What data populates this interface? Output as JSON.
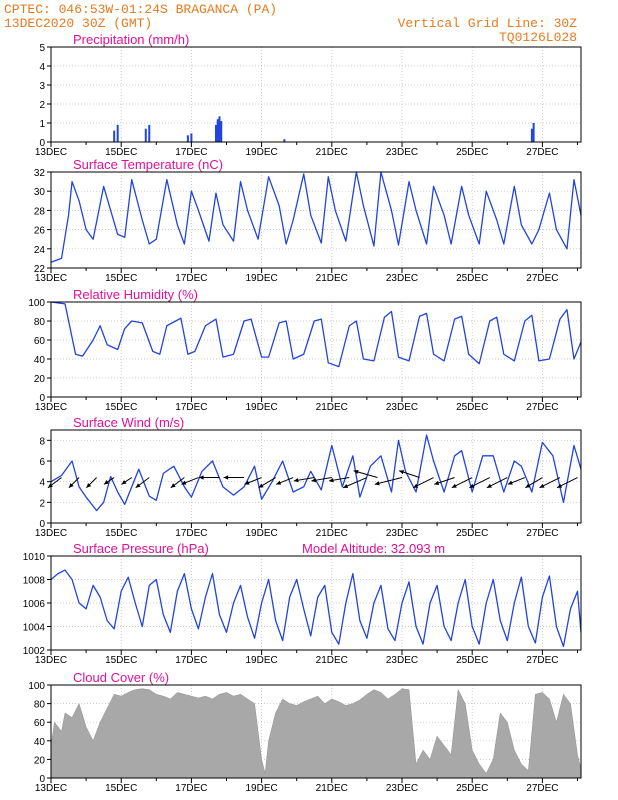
{
  "header": {
    "line1": "CPTEC:   046:53W-01:24S   BRAGANCA (PA)",
    "line2": "13DEC2020 30Z (GMT)",
    "right1": "Vertical Grid Line: 30Z",
    "right2": "TQ0126L028"
  },
  "colors": {
    "header": "#e87a1e",
    "title": "#e0109a",
    "line": "#2244dd",
    "cloud": "#a8a8a8",
    "grid": "#bbbbbb"
  },
  "x_axis": {
    "labels": [
      "13DEC",
      "15DEC",
      "17DEC",
      "19DEC",
      "21DEC",
      "23DEC",
      "25DEC",
      "27DEC"
    ],
    "range_days": [
      0,
      15.1
    ],
    "label_days": [
      0,
      2,
      4,
      6,
      8,
      10,
      12,
      14
    ]
  },
  "chart_data": [
    {
      "id": "precip",
      "type": "bar",
      "title": "Precipitation (mm/h)",
      "ylim": [
        0,
        5
      ],
      "yticks": [
        0,
        1,
        2,
        3,
        4,
        5
      ],
      "x_days": [
        1.8,
        1.9,
        2.7,
        2.8,
        3.9,
        4.0,
        4.7,
        4.75,
        4.8,
        4.85,
        6.65,
        13.7,
        13.75
      ],
      "values": [
        0.6,
        0.9,
        0.7,
        0.9,
        0.35,
        0.45,
        0.9,
        1.2,
        1.35,
        1.1,
        0.15,
        0.7,
        1.0
      ]
    },
    {
      "id": "temp",
      "type": "line",
      "title": "Surface Temperature (nC)",
      "ylim": [
        22,
        32
      ],
      "yticks": [
        22,
        24,
        26,
        28,
        30,
        32
      ],
      "x_days": [
        0,
        0.3,
        0.5,
        0.6,
        0.8,
        1.0,
        1.2,
        1.5,
        1.7,
        1.9,
        2.1,
        2.3,
        2.6,
        2.8,
        3.0,
        3.3,
        3.6,
        3.8,
        4.0,
        4.2,
        4.5,
        4.7,
        4.9,
        5.2,
        5.4,
        5.6,
        5.9,
        6.2,
        6.5,
        6.7,
        6.9,
        7.2,
        7.4,
        7.7,
        7.9,
        8.1,
        8.4,
        8.7,
        8.9,
        9.2,
        9.4,
        9.7,
        9.9,
        10.2,
        10.4,
        10.7,
        10.9,
        11.2,
        11.4,
        11.7,
        11.9,
        12.2,
        12.4,
        12.7,
        12.9,
        13.2,
        13.4,
        13.7,
        13.9,
        14.2,
        14.4,
        14.7,
        14.9,
        15.1
      ],
      "values": [
        22.6,
        23.0,
        27.5,
        31.0,
        29.0,
        26.0,
        25.0,
        30.5,
        28.0,
        25.5,
        25.2,
        31.2,
        27.0,
        24.5,
        25.0,
        31.2,
        26.5,
        24.5,
        30.0,
        28.0,
        24.8,
        29.8,
        26.5,
        24.8,
        31.0,
        28.0,
        25.0,
        31.5,
        28.5,
        24.5,
        27.0,
        31.8,
        27.5,
        24.6,
        31.5,
        28.0,
        24.8,
        32.0,
        28.5,
        24.3,
        32.0,
        28.0,
        24.4,
        31.0,
        28.0,
        24.5,
        30.5,
        27.5,
        24.5,
        30.5,
        27.5,
        24.5,
        30.0,
        27.0,
        24.5,
        30.5,
        26.5,
        24.5,
        26.0,
        29.8,
        26.0,
        24.0,
        31.2,
        27.5
      ]
    },
    {
      "id": "rh",
      "type": "line",
      "title": "Relative Humidity (%)",
      "ylim": [
        0,
        100
      ],
      "yticks": [
        0,
        20,
        40,
        60,
        80,
        100
      ],
      "x_days": [
        0,
        0.4,
        0.7,
        0.9,
        1.2,
        1.4,
        1.6,
        1.9,
        2.1,
        2.3,
        2.6,
        2.9,
        3.1,
        3.3,
        3.7,
        3.9,
        4.1,
        4.4,
        4.7,
        4.9,
        5.2,
        5.5,
        5.7,
        6.0,
        6.2,
        6.5,
        6.7,
        6.9,
        7.2,
        7.5,
        7.7,
        7.9,
        8.2,
        8.5,
        8.7,
        8.9,
        9.2,
        9.5,
        9.7,
        9.9,
        10.2,
        10.5,
        10.7,
        10.9,
        11.2,
        11.5,
        11.7,
        11.9,
        12.2,
        12.5,
        12.7,
        12.9,
        13.2,
        13.5,
        13.7,
        13.9,
        14.2,
        14.5,
        14.7,
        14.9,
        15.1
      ],
      "values": [
        100,
        98,
        45,
        43,
        60,
        75,
        55,
        50,
        72,
        80,
        78,
        48,
        45,
        75,
        83,
        45,
        48,
        75,
        82,
        42,
        45,
        80,
        82,
        42,
        42,
        78,
        80,
        40,
        45,
        80,
        82,
        36,
        32,
        75,
        80,
        40,
        38,
        84,
        90,
        42,
        38,
        85,
        88,
        45,
        38,
        82,
        85,
        45,
        35,
        80,
        84,
        45,
        38,
        80,
        86,
        38,
        40,
        82,
        92,
        40,
        58
      ]
    },
    {
      "id": "wind",
      "type": "line",
      "title": "Surface Wind (m/s)",
      "ylim": [
        0,
        9
      ],
      "yticks": [
        0,
        2,
        4,
        6,
        8
      ],
      "x_days": [
        0,
        0.3,
        0.6,
        0.8,
        1.0,
        1.3,
        1.5,
        1.7,
        1.9,
        2.1,
        2.3,
        2.5,
        2.8,
        3.0,
        3.2,
        3.5,
        3.8,
        4.0,
        4.3,
        4.6,
        4.9,
        5.2,
        5.5,
        5.8,
        6.0,
        6.3,
        6.6,
        6.9,
        7.2,
        7.4,
        7.7,
        8.0,
        8.3,
        8.6,
        8.8,
        9.1,
        9.4,
        9.7,
        9.9,
        10.1,
        10.4,
        10.7,
        10.9,
        11.2,
        11.5,
        11.7,
        12.0,
        12.3,
        12.6,
        12.9,
        13.2,
        13.4,
        13.7,
        14.0,
        14.3,
        14.6,
        14.9,
        15.1
      ],
      "values": [
        4.0,
        4.6,
        6.0,
        3.5,
        2.5,
        1.2,
        2.0,
        4.5,
        3.0,
        1.8,
        3.5,
        5.2,
        2.6,
        2.2,
        4.8,
        5.5,
        3.5,
        2.5,
        5.0,
        6.0,
        3.5,
        2.7,
        3.5,
        5.5,
        2.3,
        4.0,
        6.0,
        3.0,
        3.5,
        5.0,
        3.2,
        7.5,
        3.5,
        6.5,
        2.5,
        5.5,
        6.5,
        3.0,
        8.0,
        5.0,
        3.0,
        8.5,
        6.0,
        3.0,
        6.5,
        7.0,
        3.0,
        6.5,
        6.5,
        3.0,
        6.0,
        5.5,
        3.0,
        7.8,
        6.5,
        2.0,
        7.5,
        5.2
      ]
    },
    {
      "id": "pres",
      "type": "line",
      "title": "Surface Pressure (hPa)",
      "annotation": "Model Altitude: 32.093 m",
      "ylim": [
        1002,
        1010
      ],
      "yticks": [
        1002,
        1004,
        1006,
        1008,
        1010
      ],
      "x_days": [
        0,
        0.2,
        0.4,
        0.6,
        0.8,
        1.0,
        1.2,
        1.4,
        1.6,
        1.8,
        2.0,
        2.2,
        2.4,
        2.6,
        2.8,
        3.0,
        3.2,
        3.4,
        3.6,
        3.8,
        4.0,
        4.2,
        4.4,
        4.6,
        4.8,
        5.0,
        5.2,
        5.4,
        5.6,
        5.8,
        6.0,
        6.2,
        6.4,
        6.6,
        6.8,
        7.0,
        7.2,
        7.4,
        7.6,
        7.8,
        8.0,
        8.2,
        8.4,
        8.6,
        8.8,
        9.0,
        9.2,
        9.4,
        9.6,
        9.8,
        10.0,
        10.2,
        10.4,
        10.6,
        10.8,
        11.0,
        11.2,
        11.4,
        11.6,
        11.8,
        12.0,
        12.2,
        12.4,
        12.6,
        12.8,
        13.0,
        13.2,
        13.4,
        13.6,
        13.8,
        14.0,
        14.2,
        14.4,
        14.6,
        14.8,
        15.0,
        15.1
      ],
      "values": [
        1008.0,
        1008.5,
        1008.8,
        1008.0,
        1006.0,
        1005.5,
        1007.5,
        1006.5,
        1004.5,
        1003.8,
        1007.0,
        1008.2,
        1006.0,
        1004.0,
        1007.5,
        1008.0,
        1005.0,
        1003.5,
        1007.0,
        1008.5,
        1005.5,
        1003.8,
        1006.5,
        1008.5,
        1005.0,
        1003.5,
        1006.0,
        1007.5,
        1004.8,
        1003.0,
        1006.0,
        1008.0,
        1004.5,
        1002.8,
        1006.5,
        1008.0,
        1005.5,
        1003.2,
        1006.5,
        1007.5,
        1003.5,
        1002.5,
        1006.0,
        1008.5,
        1004.5,
        1003.0,
        1006.0,
        1007.5,
        1003.8,
        1002.8,
        1006.0,
        1007.8,
        1004.0,
        1002.5,
        1006.0,
        1007.5,
        1004.0,
        1002.8,
        1006.0,
        1008.0,
        1004.0,
        1002.5,
        1006.0,
        1008.0,
        1004.5,
        1002.8,
        1006.0,
        1008.2,
        1004.0,
        1002.6,
        1006.5,
        1008.3,
        1004.0,
        1002.3,
        1005.5,
        1007.0,
        1003.5
      ]
    },
    {
      "id": "cloud",
      "type": "area",
      "title": "Cloud Cover (%)",
      "ylim": [
        0,
        100
      ],
      "yticks": [
        0,
        20,
        40,
        60,
        80,
        100
      ],
      "x_days": [
        0,
        0.1,
        0.3,
        0.4,
        0.6,
        0.8,
        1.0,
        1.2,
        1.4,
        1.6,
        1.8,
        2.0,
        2.2,
        2.4,
        2.6,
        2.8,
        3.0,
        3.2,
        3.4,
        3.6,
        3.8,
        4.0,
        4.2,
        4.4,
        4.6,
        4.8,
        5.0,
        5.2,
        5.4,
        5.6,
        5.8,
        6.0,
        6.1,
        6.2,
        6.4,
        6.6,
        6.8,
        7.0,
        7.2,
        7.4,
        7.6,
        7.8,
        8.0,
        8.2,
        8.4,
        8.6,
        8.8,
        9.0,
        9.2,
        9.4,
        9.6,
        9.8,
        10.0,
        10.2,
        10.4,
        10.6,
        10.8,
        11.0,
        11.2,
        11.4,
        11.6,
        11.8,
        12.0,
        12.2,
        12.4,
        12.6,
        12.8,
        13.0,
        13.2,
        13.4,
        13.6,
        13.8,
        14.0,
        14.2,
        14.4,
        14.6,
        14.8,
        15.0,
        15.1
      ],
      "values": [
        35,
        60,
        50,
        70,
        65,
        80,
        55,
        40,
        60,
        75,
        90,
        88,
        92,
        95,
        96,
        95,
        90,
        88,
        85,
        92,
        90,
        88,
        86,
        88,
        85,
        90,
        92,
        88,
        90,
        85,
        80,
        20,
        5,
        40,
        70,
        85,
        80,
        78,
        82,
        85,
        88,
        80,
        85,
        82,
        78,
        80,
        84,
        90,
        95,
        92,
        85,
        90,
        96,
        95,
        15,
        30,
        20,
        45,
        35,
        25,
        95,
        80,
        30,
        15,
        5,
        20,
        70,
        60,
        30,
        15,
        8,
        90,
        92,
        85,
        60,
        90,
        80,
        25,
        10
      ]
    }
  ],
  "wind_arrows": {
    "x_days": [
      0.3,
      0.8,
      1.3,
      1.8,
      2.3,
      2.8,
      3.8,
      4.2,
      4.8,
      5.5,
      6.0,
      6.4,
      6.9,
      7.5,
      8.0,
      8.5,
      9.0,
      9.3,
      10.0,
      10.5,
      10.9,
      11.5,
      12.0,
      12.5,
      13.0,
      13.5,
      14.0,
      14.5,
      15.0
    ],
    "u": [
      -4,
      -3,
      -3,
      -3,
      -3,
      -4,
      -4,
      -5,
      -6,
      -6,
      -5,
      -5,
      -5,
      -6,
      -6,
      -6,
      -7,
      -7,
      -8,
      -6,
      -6,
      -6,
      -6,
      -6,
      -6,
      -5,
      -5,
      -6,
      -6
    ],
    "v": [
      -3,
      -3,
      -3,
      -2,
      -2,
      -3,
      -3,
      -2,
      0,
      0,
      -2,
      -3,
      -2,
      -1,
      -1,
      -1,
      -3,
      2,
      -2,
      2,
      -3,
      -2,
      -3,
      -3,
      -3,
      -2,
      -3,
      -3,
      -3
    ]
  }
}
